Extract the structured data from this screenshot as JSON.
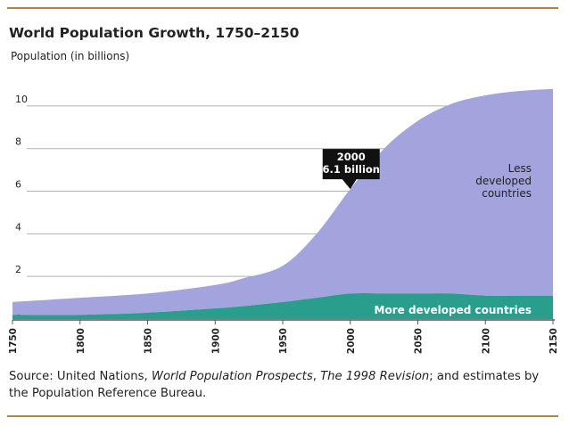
{
  "chart_data": {
    "type": "area",
    "stacked": true,
    "title": "World Population Growth, 1750–2150",
    "ylabel": "Population (in billions)",
    "xlim": [
      1750,
      2150
    ],
    "ylim": [
      0,
      11
    ],
    "x_ticks": [
      1750,
      1800,
      1850,
      1900,
      1950,
      2000,
      2050,
      2100,
      2150
    ],
    "y_ticks": [
      0,
      2,
      4,
      6,
      8,
      10
    ],
    "grid": "horizontal",
    "x": [
      1750,
      1800,
      1850,
      1900,
      1920,
      1950,
      1975,
      2000,
      2025,
      2050,
      2075,
      2100,
      2125,
      2150
    ],
    "series": [
      {
        "name": "More developed countries",
        "values": [
          0.2,
          0.2,
          0.3,
          0.5,
          0.6,
          0.8,
          1.0,
          1.2,
          1.2,
          1.2,
          1.2,
          1.1,
          1.1,
          1.1
        ],
        "color": "#2a9e8c"
      },
      {
        "name": "Less developed countries",
        "values": [
          0.6,
          0.8,
          0.9,
          1.1,
          1.3,
          1.7,
          3.0,
          4.9,
          6.8,
          8.1,
          8.9,
          9.4,
          9.6,
          9.7
        ],
        "color": "#a3a3dd"
      }
    ],
    "series_labels": {
      "less": [
        "Less",
        "developed",
        "countries"
      ],
      "more": "More developed countries"
    },
    "annotations": [
      {
        "x": 2000,
        "y": 6.1,
        "lines": [
          "2000",
          "6.1 billion"
        ]
      }
    ]
  },
  "source": {
    "prefix": "Source: United Nations, ",
    "italic1": "World Population Prospects",
    "middle": ", ",
    "italic2": "The 1998 Revision",
    "suffix": "; and estimates by the Population Reference Bureau."
  }
}
